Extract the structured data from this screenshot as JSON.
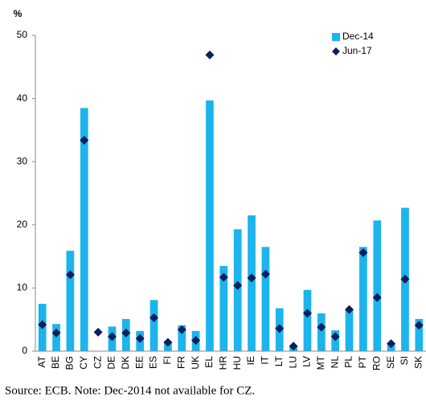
{
  "chart_data": {
    "type": "bar_marker",
    "y_label": "%",
    "note": "Source: ECB. Note: Dec-2014 not available for CZ.",
    "categories": [
      "AT",
      "BE",
      "BG",
      "CY",
      "CZ",
      "DE",
      "DK",
      "EE",
      "ES",
      "FI",
      "FR",
      "UK",
      "EL",
      "HR",
      "HU",
      "IE",
      "IT",
      "LT",
      "LU",
      "LV",
      "MT",
      "NL",
      "PL",
      "PT",
      "RO",
      "SE",
      "SI",
      "SK"
    ],
    "series": [
      {
        "name": "Dec-14",
        "color": "#1cb4ec",
        "kind": "bar",
        "values": [
          7.5,
          4.3,
          15.9,
          38.5,
          null,
          3.9,
          5.1,
          3.2,
          8.1,
          1.6,
          4.1,
          3.2,
          39.7,
          13.5,
          19.3,
          21.5,
          16.5,
          6.8,
          0.8,
          9.7,
          6.0,
          3.3,
          6.5,
          16.5,
          20.7,
          1.3,
          22.7,
          5.1
        ]
      },
      {
        "name": "Jun-17",
        "color": "#0f1f5c",
        "kind": "marker",
        "values": [
          4.2,
          2.9,
          12.1,
          33.4,
          3.0,
          2.3,
          2.9,
          2.0,
          5.3,
          1.4,
          3.4,
          1.7,
          46.9,
          11.7,
          10.4,
          11.6,
          12.2,
          3.6,
          0.8,
          6.0,
          3.8,
          2.3,
          6.6,
          15.6,
          8.5,
          1.2,
          11.4,
          4.1
        ]
      }
    ],
    "ylim": [
      0,
      50
    ],
    "yticks": [
      0,
      10,
      20,
      30,
      40,
      50
    ],
    "grid": false,
    "legend": "top-right"
  }
}
